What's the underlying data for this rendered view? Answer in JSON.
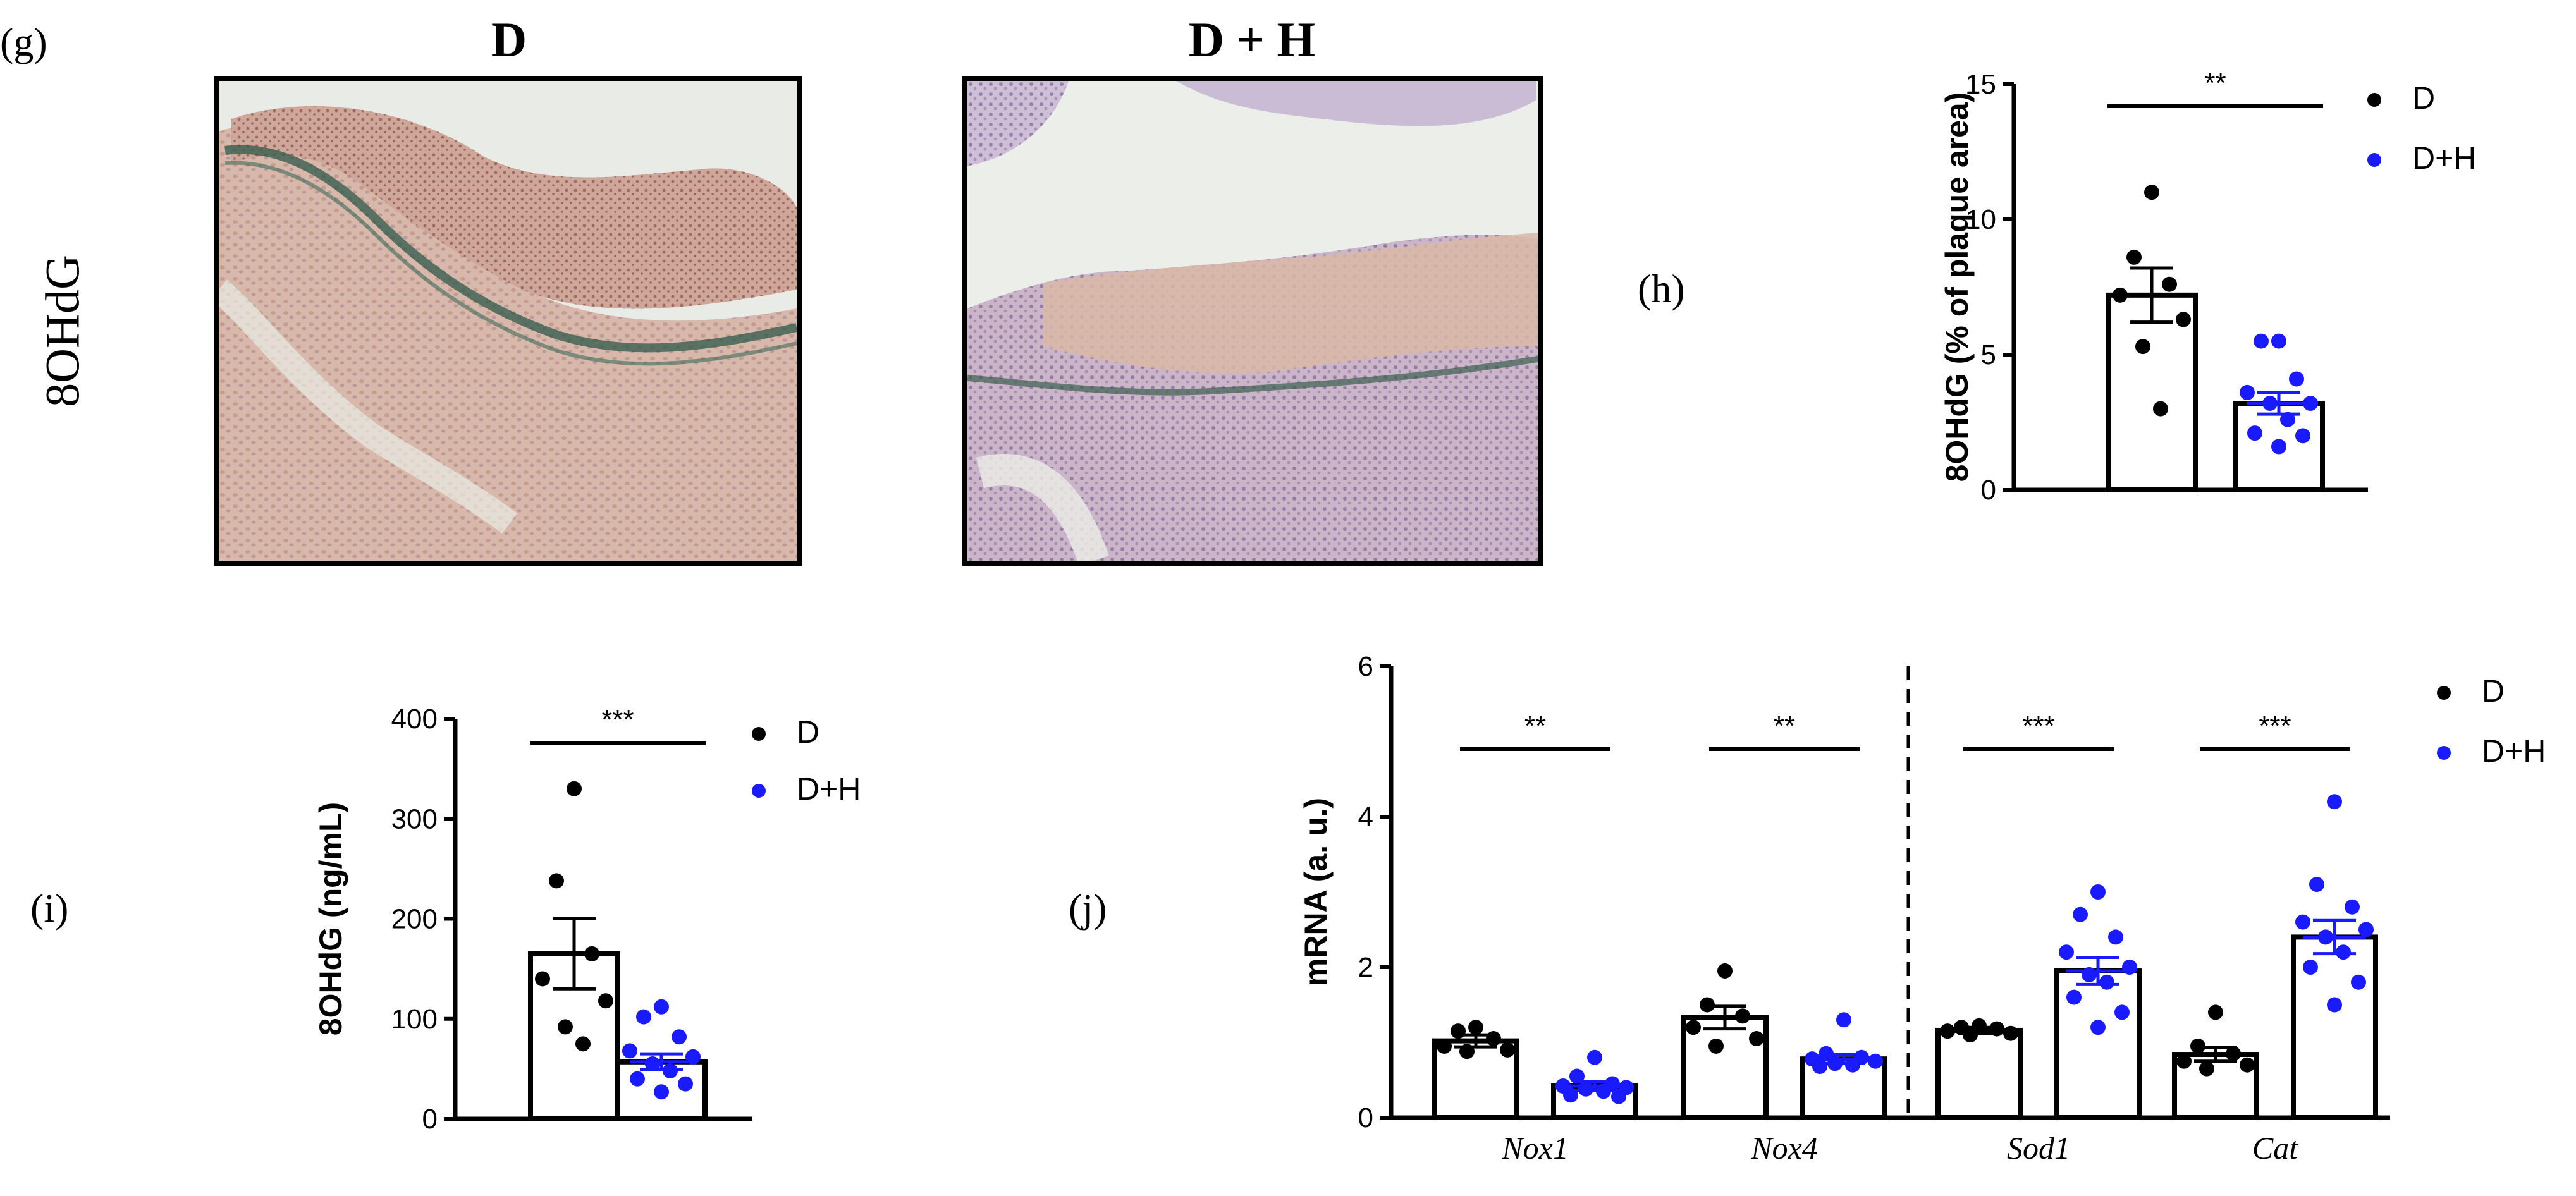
{
  "panels": {
    "g": "(g)",
    "h": "(h)",
    "i": "(i)",
    "j": "(j)"
  },
  "micrographs": {
    "row_label": "8OHdG",
    "left_title": "D",
    "right_title": "D + H"
  },
  "colors": {
    "D": "#000000",
    "D+H": "#1a1aff",
    "stain_left": "#c9a59a",
    "stain_right": "#b7a3c4"
  },
  "chart_data": [
    {
      "id": "h",
      "type": "bar",
      "categories": [
        "D",
        "D+H"
      ],
      "ylabel": "8OHdG (% of plaque area)",
      "ylim": [
        0,
        15
      ],
      "yticks": [
        0,
        5,
        10,
        15
      ],
      "legend": [
        "D",
        "D+H"
      ],
      "legend_position": "top-right",
      "series": [
        {
          "name": "D",
          "mean": 7.2,
          "sem": 1.0,
          "points": [
            11.0,
            8.6,
            7.6,
            7.2,
            6.3,
            5.3,
            3.0
          ]
        },
        {
          "name": "D+H",
          "mean": 3.2,
          "sem": 0.4,
          "points": [
            5.5,
            5.5,
            4.1,
            3.6,
            3.2,
            3.2,
            2.6,
            2.1,
            2.0,
            1.6
          ]
        }
      ],
      "significance": [
        {
          "between": [
            0,
            1
          ],
          "label": "**"
        }
      ]
    },
    {
      "id": "i",
      "type": "bar",
      "categories": [
        "D",
        "D+H"
      ],
      "ylabel": "8OHdG (ng/mL)",
      "ylim": [
        0,
        400
      ],
      "yticks": [
        0,
        100,
        200,
        300,
        400
      ],
      "legend": [
        "D",
        "D+H"
      ],
      "legend_position": "top-right",
      "series": [
        {
          "name": "D",
          "mean": 165,
          "sem": 35,
          "points": [
            330,
            238,
            165,
            140,
            118,
            92,
            75
          ]
        },
        {
          "name": "D+H",
          "mean": 57,
          "sem": 8,
          "points": [
            112,
            102,
            82,
            68,
            62,
            55,
            48,
            40,
            35,
            27
          ]
        }
      ],
      "significance": [
        {
          "between": [
            0,
            1
          ],
          "label": "***"
        }
      ]
    },
    {
      "id": "j",
      "type": "bar",
      "categories": [
        "Nox1",
        "Nox4",
        "Sod1",
        "Cat"
      ],
      "ylabel": "mRNA (a. u.)",
      "ylim": [
        0,
        6
      ],
      "yticks": [
        0,
        2,
        4,
        6
      ],
      "legend": [
        "D",
        "D+H"
      ],
      "legend_position": "top-right",
      "series": [
        {
          "name": "D",
          "means": [
            1.02,
            1.33,
            1.16,
            0.84
          ],
          "sems": [
            0.08,
            0.15,
            0.04,
            0.09
          ],
          "points": [
            [
              1.2,
              1.15,
              1.05,
              0.95,
              0.9,
              0.88
            ],
            [
              1.95,
              1.5,
              1.35,
              1.2,
              1.05,
              0.95
            ],
            [
              1.22,
              1.2,
              1.18,
              1.15,
              1.12,
              1.1
            ],
            [
              1.4,
              0.95,
              0.85,
              0.75,
              0.7,
              0.65
            ]
          ]
        },
        {
          "name": "D+H",
          "means": [
            0.42,
            0.78,
            1.95,
            2.4
          ],
          "sems": [
            0.06,
            0.06,
            0.18,
            0.22
          ],
          "points": [
            [
              0.8,
              0.55,
              0.45,
              0.42,
              0.4,
              0.38,
              0.35,
              0.3,
              0.28
            ],
            [
              1.3,
              0.85,
              0.8,
              0.78,
              0.75,
              0.72,
              0.7,
              0.68
            ],
            [
              3.0,
              2.7,
              2.4,
              2.2,
              2.0,
              1.9,
              1.8,
              1.6,
              1.4,
              1.2
            ],
            [
              4.2,
              3.1,
              2.8,
              2.6,
              2.5,
              2.4,
              2.2,
              2.0,
              1.8,
              1.5
            ]
          ]
        }
      ],
      "significance": [
        {
          "category": 0,
          "label": "**"
        },
        {
          "category": 1,
          "label": "**"
        },
        {
          "category": 2,
          "label": "***"
        },
        {
          "category": 3,
          "label": "***"
        }
      ]
    }
  ]
}
